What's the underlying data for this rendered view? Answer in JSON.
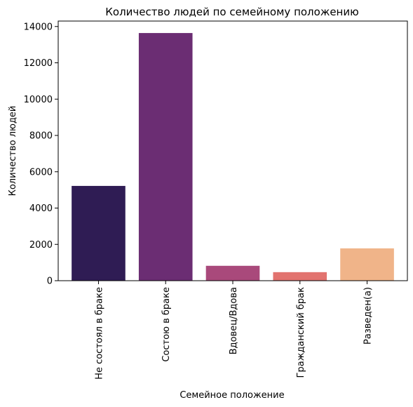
{
  "chart_data": {
    "type": "bar",
    "title": "Количество людей по семейному положению",
    "xlabel": "Семейное положение",
    "ylabel": "Количество людей",
    "categories": [
      "Не состоял в браке",
      "Состою в браке",
      "Вдовец/Вдова",
      "Гражданский брак",
      "Разведен(а)"
    ],
    "values": [
      5220,
      13640,
      820,
      470,
      1780
    ],
    "colors": [
      "#2f1c54",
      "#6b2d73",
      "#a9497b",
      "#e2736f",
      "#f0b489"
    ],
    "ylim": [
      0,
      14300
    ],
    "yticks": [
      0,
      2000,
      4000,
      6000,
      8000,
      10000,
      12000,
      14000
    ],
    "ytick_labels": [
      "0",
      "2000",
      "4000",
      "6000",
      "8000",
      "10000",
      "12000",
      "14000"
    ],
    "grid": false,
    "legend": "none"
  }
}
